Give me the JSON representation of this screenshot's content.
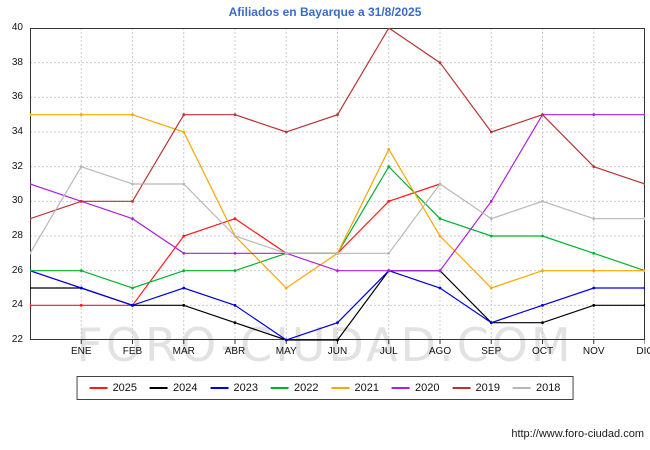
{
  "page": {
    "title": "Afiliados en Bayarque a 31/8/2025",
    "watermark": "FORO-CIUDAD.COM",
    "footer_url": "http://www.foro-ciudad.com"
  },
  "chart_data": {
    "type": "line",
    "title": "Afiliados en Bayarque a 31/8/2025",
    "categories": [
      "ENE",
      "FEB",
      "MAR",
      "ABR",
      "MAY",
      "JUN",
      "JUL",
      "AGO",
      "SEP",
      "OCT",
      "NOV",
      "DIC"
    ],
    "ylim": [
      22,
      40
    ],
    "ytick_step": 2,
    "grid": true,
    "legend_position": "bottom",
    "note_first_value": "first value of each series is plotted on the left axis before ENE",
    "series": [
      {
        "name": "2025",
        "color": "#ff1a1a",
        "values": [
          24,
          24,
          24,
          28,
          29,
          27,
          27,
          30,
          31
        ]
      },
      {
        "name": "2024",
        "color": "#000000",
        "values": [
          25,
          25,
          24,
          24,
          23,
          22,
          22,
          26,
          26,
          23,
          23,
          24,
          24
        ]
      },
      {
        "name": "2023",
        "color": "#0000dd",
        "values": [
          26,
          25,
          24,
          25,
          24,
          22,
          23,
          26,
          25,
          23,
          24,
          25,
          25
        ]
      },
      {
        "name": "2022",
        "color": "#00b32c",
        "values": [
          26,
          26,
          25,
          26,
          26,
          27,
          27,
          32,
          29,
          28,
          28,
          27,
          26
        ]
      },
      {
        "name": "2021",
        "color": "#ffa500",
        "values": [
          35,
          35,
          35,
          34,
          28,
          25,
          27,
          33,
          28,
          25,
          26,
          26,
          26
        ]
      },
      {
        "name": "2020",
        "color": "#aa22dd",
        "values": [
          31,
          30,
          29,
          27,
          27,
          27,
          26,
          26,
          26,
          30,
          35,
          35,
          35
        ]
      },
      {
        "name": "2019",
        "color": "#bb3333",
        "values": [
          29,
          30,
          30,
          35,
          35,
          34,
          35,
          40,
          38,
          34,
          35,
          32,
          31
        ]
      },
      {
        "name": "2018",
        "color": "#b8b8b8",
        "values": [
          27,
          32,
          31,
          31,
          28,
          27,
          27,
          27,
          31,
          29,
          30,
          29,
          29
        ]
      }
    ]
  }
}
